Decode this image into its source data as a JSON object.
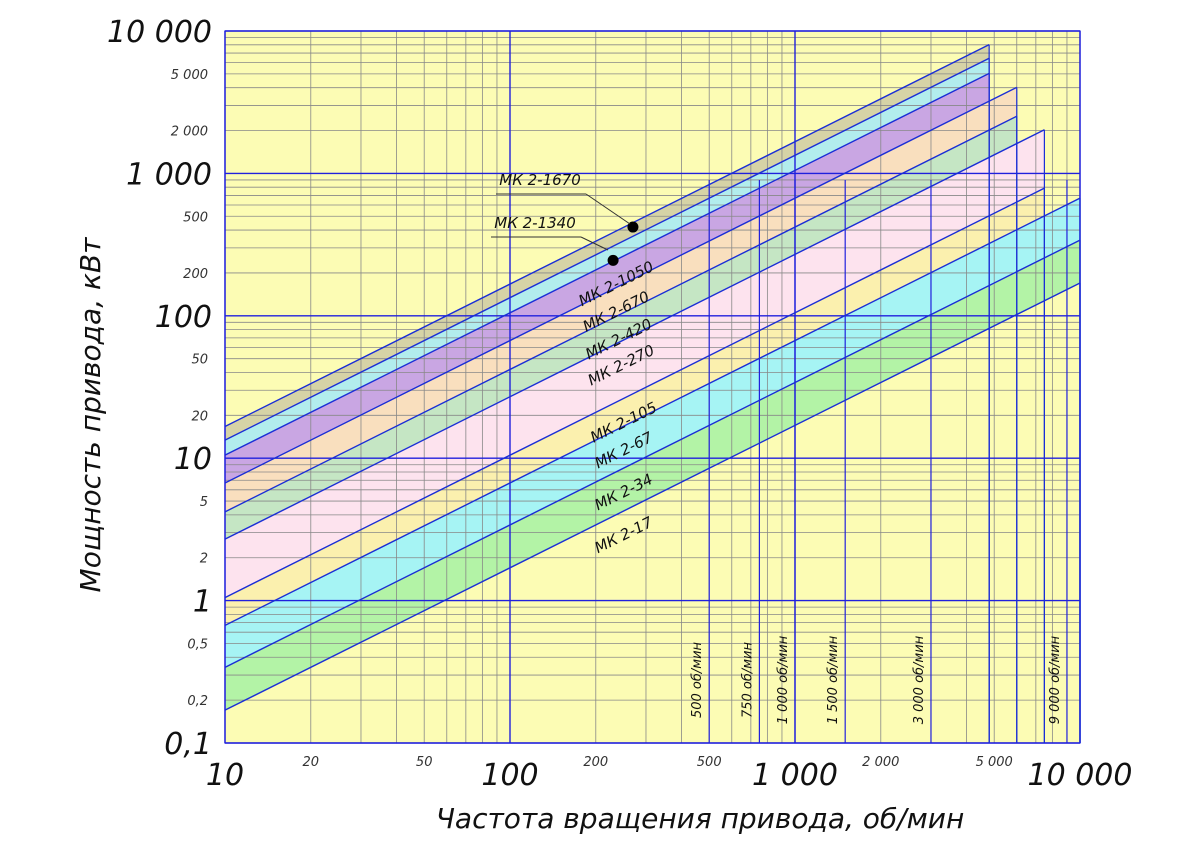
{
  "chart_data": {
    "type": "area",
    "xlabel": "Частота вращения привода, об/мин",
    "ylabel": "Мощность привода, кВт",
    "xscale": "log",
    "yscale": "log",
    "xlim": [
      10,
      10000
    ],
    "ylim": [
      0.1,
      10000
    ],
    "grid": true,
    "x_major_ticks": [
      {
        "value": 10,
        "label": "10"
      },
      {
        "value": 100,
        "label": "100"
      },
      {
        "value": 1000,
        "label": "1 000"
      },
      {
        "value": 10000,
        "label": "10 000"
      }
    ],
    "x_minor_ticks": [
      {
        "value": 20,
        "label": "20"
      },
      {
        "value": 50,
        "label": "50"
      },
      {
        "value": 200,
        "label": "200"
      },
      {
        "value": 500,
        "label": "500"
      },
      {
        "value": 2000,
        "label": "2 000"
      },
      {
        "value": 5000,
        "label": "5 000"
      }
    ],
    "y_major_ticks": [
      {
        "value": 0.1,
        "label": "0,1"
      },
      {
        "value": 1,
        "label": "1"
      },
      {
        "value": 10,
        "label": "10"
      },
      {
        "value": 100,
        "label": "100"
      },
      {
        "value": 1000,
        "label": "1 000"
      },
      {
        "value": 10000,
        "label": "10 000"
      }
    ],
    "y_minor_ticks": [
      {
        "value": 0.2,
        "label": "0,2"
      },
      {
        "value": 0.5,
        "label": "0,5"
      },
      {
        "value": 2,
        "label": "2"
      },
      {
        "value": 5,
        "label": "5"
      },
      {
        "value": 20,
        "label": "20"
      },
      {
        "value": 50,
        "label": "50"
      },
      {
        "value": 200,
        "label": "200"
      },
      {
        "value": 500,
        "label": "500"
      },
      {
        "value": 2000,
        "label": "2 000"
      },
      {
        "value": 5000,
        "label": "5 000"
      }
    ],
    "speed_lines": [
      {
        "value": 500,
        "label": "500 об/мин"
      },
      {
        "value": 750,
        "label": "750 об/мин"
      },
      {
        "value": 1000,
        "label": "1 000 об/мин"
      },
      {
        "value": 1500,
        "label": "1 500 об/мин"
      },
      {
        "value": 3000,
        "label": "3 000 об/мин"
      },
      {
        "value": 9000,
        "label": "9 000 об/мин"
      }
    ],
    "series": [
      {
        "name": "МК 2-1670",
        "y_at_10": 16.7,
        "x_max": 4800,
        "color": "#d6d3a6"
      },
      {
        "name": "МК 2-1340",
        "y_at_10": 13.4,
        "x_max": 4800,
        "color": "#b2eded"
      },
      {
        "name": "МК 2-1050",
        "y_at_10": 10.5,
        "x_max": 4800,
        "color": "#c9a6e3"
      },
      {
        "name": "МК 2-670",
        "y_at_10": 6.7,
        "x_max": 6000,
        "color": "#f9dfbe"
      },
      {
        "name": "МК 2-420",
        "y_at_10": 4.2,
        "x_max": 6000,
        "color": "#c5e6c4"
      },
      {
        "name": "МК 2-270",
        "y_at_10": 2.7,
        "x_max": 7500,
        "color": "#fde3ee"
      },
      {
        "name": "МК 2-105",
        "y_at_10": 1.05,
        "x_max": 7500,
        "color": "#fbf0ae"
      },
      {
        "name": "МК 2-67",
        "y_at_10": 0.67,
        "x_max": 10000,
        "color": "#a6f4f4"
      },
      {
        "name": "МК 2-34",
        "y_at_10": 0.34,
        "x_max": 10000,
        "color": "#b3f3a6"
      },
      {
        "name": "МК 2-17",
        "y_at_10": 0.17,
        "x_max": 10000,
        "color": "#fcfcb4"
      }
    ],
    "points": [
      {
        "x": 270,
        "y": 420,
        "series": "МК 2-1670"
      },
      {
        "x": 230,
        "y": 245,
        "series": "МК 2-1340"
      }
    ],
    "colors": {
      "grid_major": "#2020dd",
      "grid_minor": "#888888",
      "series_line": "#1a2ed6",
      "background": "#fcfcb4"
    }
  }
}
